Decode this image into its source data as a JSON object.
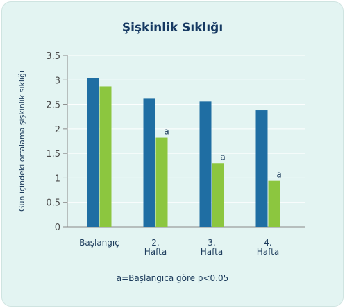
{
  "chart_data": {
    "type": "bar",
    "title": "Şişkinlik Sıklığı",
    "ylabel": "Gün içindeki ortalama şişkinlik sıklığı",
    "xlabel": "",
    "ylim": [
      0,
      3.5
    ],
    "yticks": [
      "0",
      "0.5",
      "1",
      "1.5",
      "2",
      "2.5",
      "3",
      "3.5"
    ],
    "categories": [
      [
        "Başlangıç"
      ],
      [
        "2.",
        "Hafta"
      ],
      [
        "3.",
        "Hafta"
      ],
      [
        "4.",
        "Hafta"
      ]
    ],
    "series": [
      {
        "values": [
          3.04,
          2.63,
          2.56,
          2.38
        ]
      },
      {
        "values": [
          2.87,
          1.82,
          1.3,
          0.94
        ]
      }
    ],
    "annotations": [
      "",
      "a",
      "a",
      "a"
    ],
    "colors": {
      "series1": "#1f6ea3",
      "series2": "#8cc63f",
      "axis": "#888888"
    },
    "footnote": "a=Başlangıca göre p<0.05"
  }
}
